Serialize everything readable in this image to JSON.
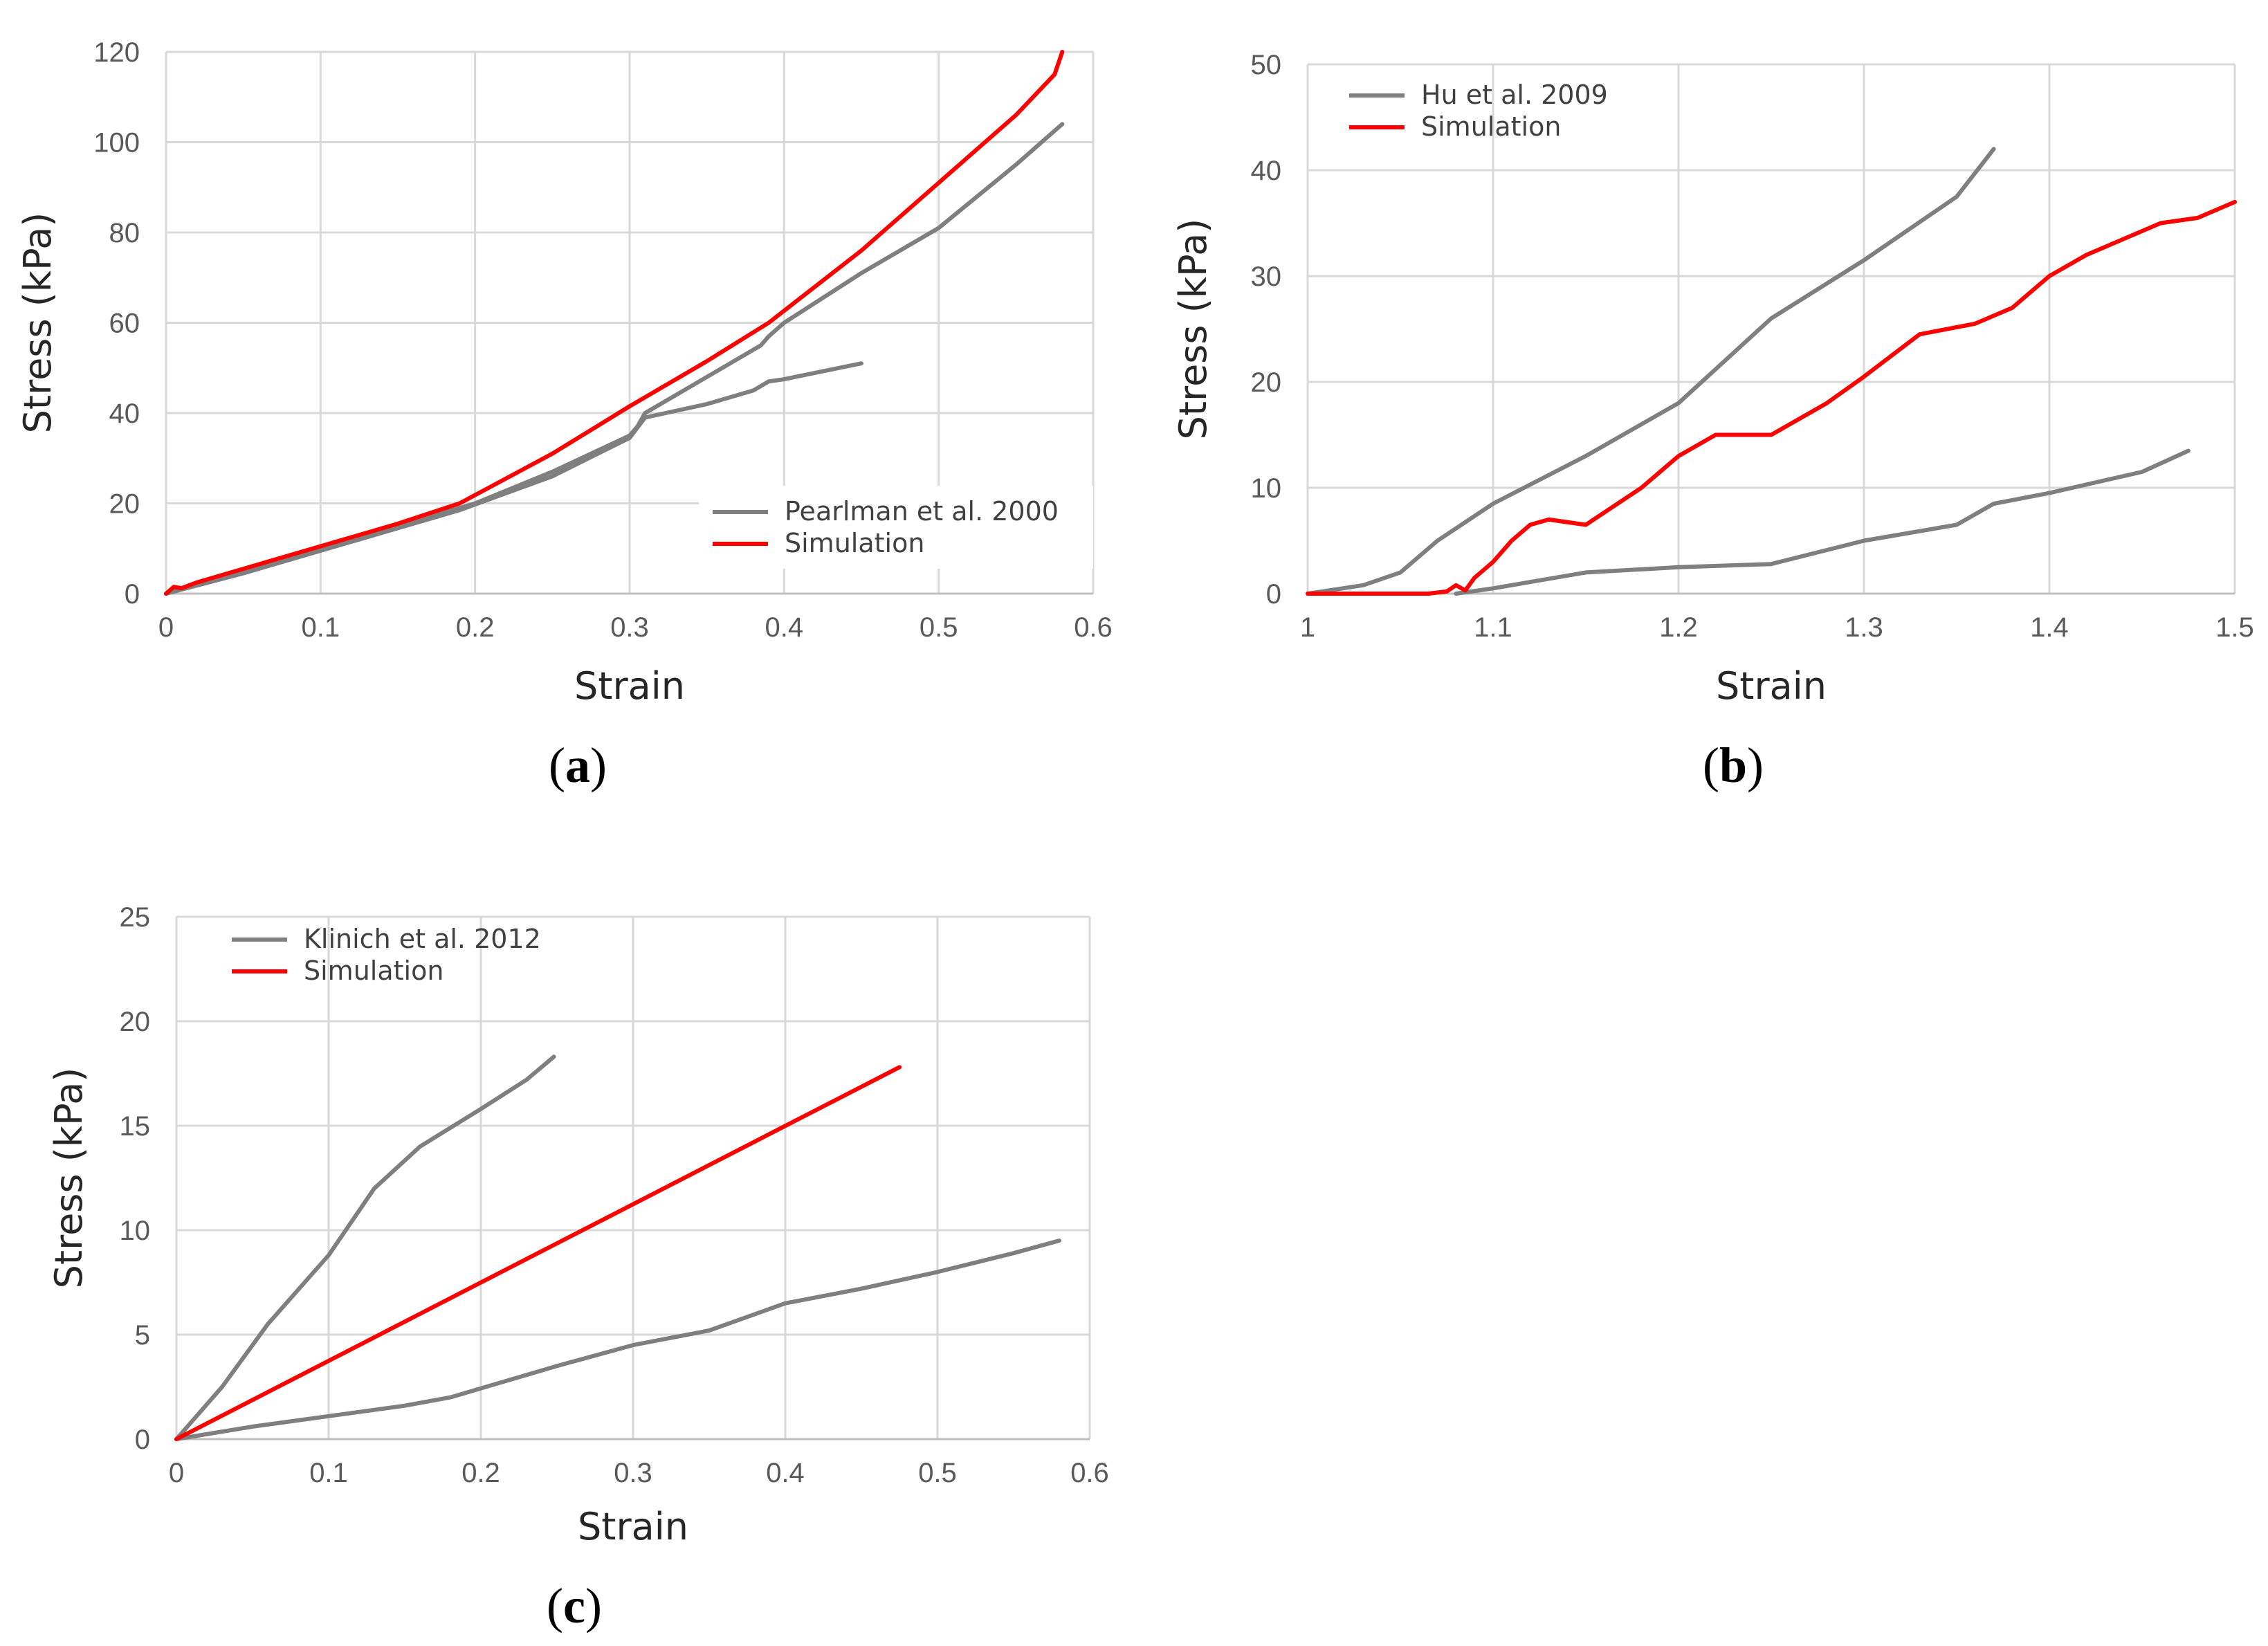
{
  "colors": {
    "experiment": "#7f7f7f",
    "simulation": "#ff0000",
    "grid": "#d9d9d9",
    "axis": "#bfbfbf"
  },
  "chart_data": [
    {
      "type": "line",
      "panel_label": "a",
      "xlabel": "Strain",
      "ylabel": "Stress (kPa)",
      "xlim": [
        0,
        0.6
      ],
      "ylim": [
        0,
        120
      ],
      "xticks": [
        0,
        0.1,
        0.2,
        0.3,
        0.4,
        0.5,
        0.6
      ],
      "yticks": [
        0,
        20,
        40,
        60,
        80,
        100,
        120
      ],
      "xtick_labels": [
        "0",
        "0.1",
        "0.2",
        "0.3",
        "0.4",
        "0.5",
        "0.6"
      ],
      "ytick_labels": [
        "0",
        "20",
        "40",
        "60",
        "80",
        "100",
        "120"
      ],
      "legend_position": "bottom-right",
      "legend": [
        "Pearlman et al. 2000",
        "Simulation"
      ],
      "series": [
        {
          "name": "Pearlman et al. 2000",
          "color": "experiment",
          "legend_index": 0,
          "x": [
            0,
            0.05,
            0.1,
            0.15,
            0.2,
            0.25,
            0.3,
            0.305,
            0.31,
            0.35,
            0.385,
            0.39,
            0.4,
            0.45,
            0.5,
            0.55,
            0.58
          ],
          "y": [
            0,
            5,
            10,
            15,
            20,
            27,
            35,
            37,
            40,
            48,
            55,
            57,
            60,
            71,
            81,
            95,
            104
          ]
        },
        {
          "name": "Pearlman et al. 2000 (lower)",
          "color": "experiment",
          "x": [
            0,
            0.05,
            0.1,
            0.15,
            0.19,
            0.25,
            0.3,
            0.31,
            0.35,
            0.38,
            0.39,
            0.4,
            0.45
          ],
          "y": [
            0,
            4.5,
            9.5,
            14.5,
            18.5,
            26,
            34.5,
            39,
            42,
            45,
            47,
            47.5,
            51
          ]
        },
        {
          "name": "Simulation",
          "color": "simulation",
          "legend_index": 1,
          "x": [
            0,
            0.005,
            0.01,
            0.02,
            0.05,
            0.1,
            0.15,
            0.19,
            0.25,
            0.3,
            0.35,
            0.39,
            0.45,
            0.5,
            0.55,
            0.575,
            0.58
          ],
          "y": [
            0,
            1.5,
            1.2,
            2.5,
            5.5,
            10.5,
            15.5,
            20,
            31,
            41.5,
            51.5,
            60,
            76,
            91,
            106,
            115,
            120
          ]
        }
      ]
    },
    {
      "type": "line",
      "panel_label": "b",
      "xlabel": "Strain",
      "ylabel": "Stress (kPa)",
      "xlim": [
        1,
        1.5
      ],
      "ylim": [
        0,
        50
      ],
      "xticks": [
        1,
        1.1,
        1.2,
        1.3,
        1.4,
        1.5
      ],
      "yticks": [
        0,
        10,
        20,
        30,
        40,
        50
      ],
      "xtick_labels": [
        "1",
        "1.1",
        "1.2",
        "1.3",
        "1.4",
        "1.5"
      ],
      "ytick_labels": [
        "0",
        "10",
        "20",
        "30",
        "40",
        "50"
      ],
      "legend_position": "top-left",
      "legend": [
        "Hu et al. 2009",
        "Simulation"
      ],
      "series": [
        {
          "name": "Hu et al. 2009",
          "color": "experiment",
          "legend_index": 0,
          "x": [
            1,
            1.03,
            1.05,
            1.07,
            1.1,
            1.15,
            1.2,
            1.25,
            1.3,
            1.35,
            1.37
          ],
          "y": [
            0,
            0.8,
            2,
            5,
            8.5,
            13,
            18,
            26,
            31.5,
            37.5,
            42
          ]
        },
        {
          "name": "Hu et al. 2009 (lower)",
          "color": "experiment",
          "x": [
            1.08,
            1.1,
            1.15,
            1.2,
            1.25,
            1.3,
            1.35,
            1.37,
            1.4,
            1.45,
            1.475
          ],
          "y": [
            0,
            0.5,
            2,
            2.5,
            2.8,
            5,
            6.5,
            8.5,
            9.5,
            11.5,
            13.5
          ]
        },
        {
          "name": "Simulation",
          "color": "simulation",
          "legend_index": 1,
          "x": [
            1,
            1.065,
            1.075,
            1.08,
            1.085,
            1.09,
            1.1,
            1.11,
            1.12,
            1.13,
            1.15,
            1.18,
            1.2,
            1.22,
            1.25,
            1.28,
            1.3,
            1.33,
            1.36,
            1.38,
            1.4,
            1.42,
            1.46,
            1.48,
            1.5
          ],
          "y": [
            0,
            0,
            0.2,
            0.8,
            0.3,
            1.5,
            3,
            5,
            6.5,
            7,
            6.5,
            10,
            13,
            15,
            15,
            18,
            20.5,
            24.5,
            25.5,
            27,
            30,
            32,
            35,
            35.5,
            37
          ]
        }
      ]
    },
    {
      "type": "line",
      "panel_label": "c",
      "xlabel": "Strain",
      "ylabel": "Stress (kPa)",
      "xlim": [
        0,
        0.6
      ],
      "ylim": [
        0,
        25
      ],
      "xticks": [
        0,
        0.1,
        0.2,
        0.3,
        0.4,
        0.5,
        0.6
      ],
      "yticks": [
        0,
        5,
        10,
        15,
        20,
        25
      ],
      "xtick_labels": [
        "0",
        "0.1",
        "0.2",
        "0.3",
        "0.4",
        "0.5",
        "0.6"
      ],
      "ytick_labels": [
        "0",
        "5",
        "10",
        "15",
        "20",
        "25"
      ],
      "legend_position": "top-left",
      "legend": [
        "Klinich et al. 2012",
        "Simulation"
      ],
      "series": [
        {
          "name": "Klinich et al. 2012",
          "color": "experiment",
          "legend_index": 0,
          "x": [
            0,
            0.03,
            0.06,
            0.1,
            0.13,
            0.16,
            0.2,
            0.23,
            0.248
          ],
          "y": [
            0,
            2.5,
            5.5,
            8.8,
            12,
            14,
            15.8,
            17.2,
            18.3
          ]
        },
        {
          "name": "Klinich et al. 2012 (lower)",
          "color": "experiment",
          "x": [
            0,
            0.05,
            0.1,
            0.15,
            0.18,
            0.25,
            0.3,
            0.35,
            0.4,
            0.45,
            0.5,
            0.55,
            0.58
          ],
          "y": [
            0,
            0.6,
            1.1,
            1.6,
            2,
            3.5,
            4.5,
            5.2,
            6.5,
            7.2,
            8,
            8.9,
            9.5
          ]
        },
        {
          "name": "Simulation",
          "color": "simulation",
          "legend_index": 1,
          "x": [
            0,
            0.475
          ],
          "y": [
            0,
            17.8
          ]
        }
      ]
    }
  ]
}
